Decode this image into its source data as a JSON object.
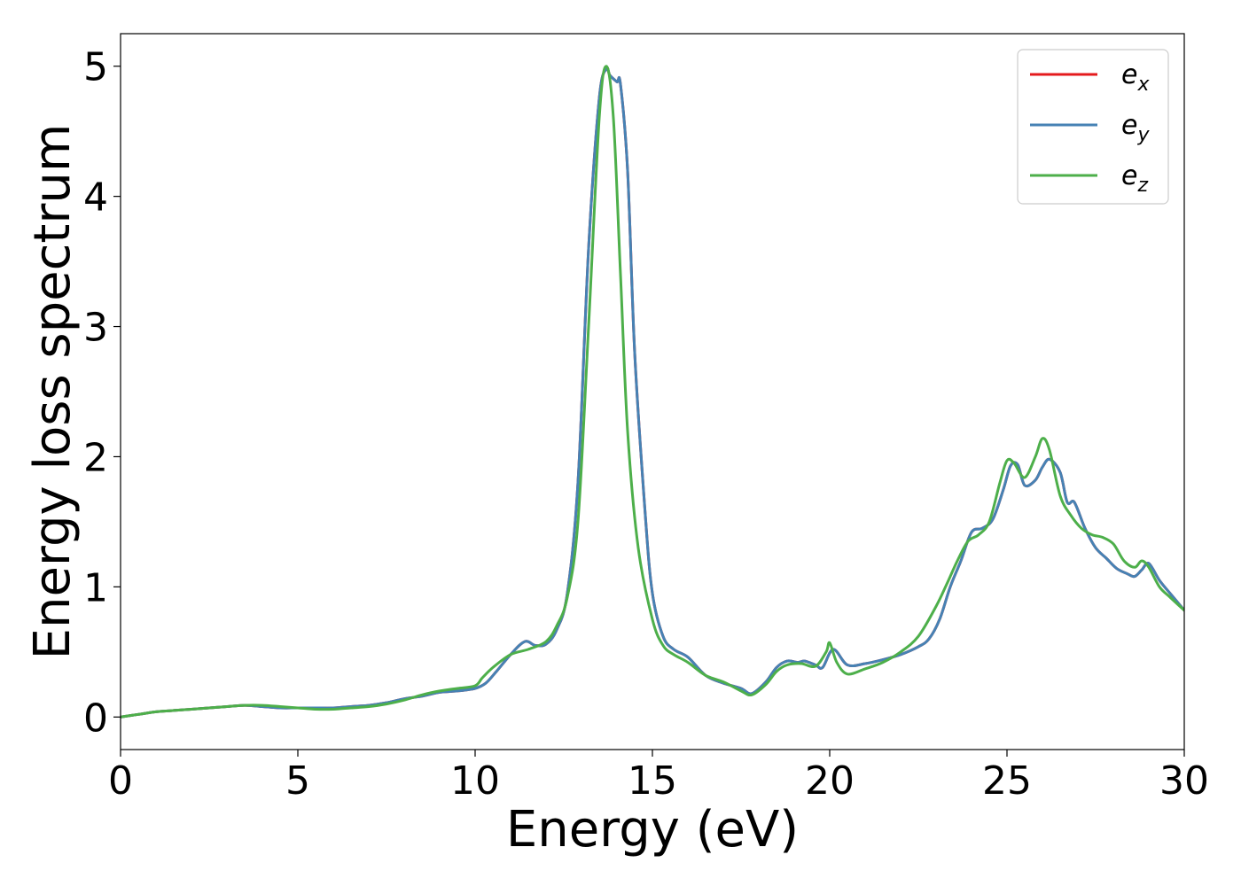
{
  "chart_data": {
    "type": "line",
    "xlabel": "Energy (eV)",
    "ylabel": "Energy loss spectrum",
    "xlim": [
      0,
      30
    ],
    "ylim": [
      -0.25,
      5.25
    ],
    "xticks": [
      0,
      5,
      10,
      15,
      20,
      25,
      30
    ],
    "yticks": [
      0,
      1,
      2,
      3,
      4,
      5
    ],
    "grid": false,
    "legend_position": "top-right",
    "series": [
      {
        "name": "e_x",
        "symbol": "e",
        "subscript": "x",
        "color": "#e41a1c",
        "x": [
          0,
          0.5,
          1,
          1.5,
          2,
          2.5,
          3,
          3.5,
          4,
          4.5,
          5,
          5.5,
          6,
          6.5,
          7,
          7.5,
          8,
          8.5,
          9,
          9.5,
          10,
          10.3,
          10.6,
          11,
          11.4,
          11.7,
          12,
          12.3,
          12.6,
          12.9,
          13.2,
          13.5,
          13.7,
          13.8,
          14,
          14.1,
          14.3,
          14.5,
          14.8,
          15,
          15.3,
          15.6,
          16,
          16.5,
          17,
          17.5,
          17.8,
          18.2,
          18.5,
          18.8,
          19.1,
          19.3,
          19.6,
          19.8,
          20.1,
          20.5,
          21,
          21.5,
          22,
          22.5,
          22.8,
          23.1,
          23.4,
          23.7,
          24,
          24.3,
          24.6,
          24.9,
          25.1,
          25.3,
          25.5,
          25.8,
          26,
          26.2,
          26.5,
          26.7,
          26.9,
          27.2,
          27.5,
          27.8,
          28.1,
          28.4,
          28.6,
          28.8,
          29,
          29.3,
          29.6,
          30
        ],
        "y": [
          0,
          0.02,
          0.04,
          0.05,
          0.06,
          0.07,
          0.08,
          0.09,
          0.08,
          0.07,
          0.07,
          0.07,
          0.07,
          0.08,
          0.09,
          0.11,
          0.14,
          0.16,
          0.19,
          0.2,
          0.22,
          0.26,
          0.35,
          0.48,
          0.58,
          0.55,
          0.56,
          0.67,
          0.95,
          1.8,
          3.6,
          4.75,
          4.98,
          4.93,
          4.88,
          4.86,
          4.2,
          2.8,
          1.55,
          0.95,
          0.62,
          0.52,
          0.46,
          0.32,
          0.26,
          0.22,
          0.18,
          0.27,
          0.38,
          0.43,
          0.42,
          0.43,
          0.4,
          0.38,
          0.52,
          0.4,
          0.41,
          0.44,
          0.48,
          0.54,
          0.6,
          0.75,
          1.0,
          1.2,
          1.42,
          1.45,
          1.52,
          1.75,
          1.93,
          1.94,
          1.78,
          1.82,
          1.92,
          1.98,
          1.88,
          1.65,
          1.65,
          1.45,
          1.3,
          1.22,
          1.14,
          1.1,
          1.08,
          1.13,
          1.18,
          1.05,
          0.95,
          0.82
        ]
      },
      {
        "name": "e_y",
        "symbol": "e",
        "subscript": "y",
        "color": "#4682b4",
        "x": [
          0,
          0.5,
          1,
          1.5,
          2,
          2.5,
          3,
          3.5,
          4,
          4.5,
          5,
          5.5,
          6,
          6.5,
          7,
          7.5,
          8,
          8.5,
          9,
          9.5,
          10,
          10.3,
          10.6,
          11,
          11.4,
          11.7,
          12,
          12.3,
          12.6,
          12.9,
          13.2,
          13.5,
          13.7,
          13.8,
          14,
          14.1,
          14.3,
          14.5,
          14.8,
          15,
          15.3,
          15.6,
          16,
          16.5,
          17,
          17.5,
          17.8,
          18.2,
          18.5,
          18.8,
          19.1,
          19.3,
          19.6,
          19.8,
          20.1,
          20.5,
          21,
          21.5,
          22,
          22.5,
          22.8,
          23.1,
          23.4,
          23.7,
          24,
          24.3,
          24.6,
          24.9,
          25.1,
          25.3,
          25.5,
          25.8,
          26,
          26.2,
          26.5,
          26.7,
          26.9,
          27.2,
          27.5,
          27.8,
          28.1,
          28.4,
          28.6,
          28.8,
          29,
          29.3,
          29.6,
          30
        ],
        "y": [
          0,
          0.02,
          0.04,
          0.05,
          0.06,
          0.07,
          0.08,
          0.09,
          0.08,
          0.07,
          0.07,
          0.07,
          0.07,
          0.08,
          0.09,
          0.11,
          0.14,
          0.16,
          0.19,
          0.2,
          0.22,
          0.26,
          0.35,
          0.48,
          0.58,
          0.55,
          0.56,
          0.67,
          0.95,
          1.8,
          3.6,
          4.75,
          4.98,
          4.93,
          4.88,
          4.86,
          4.2,
          2.8,
          1.55,
          0.95,
          0.62,
          0.52,
          0.46,
          0.32,
          0.26,
          0.22,
          0.18,
          0.27,
          0.38,
          0.43,
          0.42,
          0.43,
          0.4,
          0.38,
          0.52,
          0.4,
          0.41,
          0.44,
          0.48,
          0.54,
          0.6,
          0.75,
          1.0,
          1.2,
          1.42,
          1.45,
          1.52,
          1.75,
          1.93,
          1.94,
          1.78,
          1.82,
          1.92,
          1.98,
          1.88,
          1.65,
          1.65,
          1.45,
          1.3,
          1.22,
          1.14,
          1.1,
          1.08,
          1.13,
          1.18,
          1.05,
          0.95,
          0.82
        ]
      },
      {
        "name": "e_z",
        "symbol": "e",
        "subscript": "z",
        "color": "#4daf4a",
        "x": [
          0,
          0.5,
          1,
          1.5,
          2,
          2.5,
          3,
          3.5,
          4,
          4.5,
          5,
          5.5,
          6,
          6.5,
          7,
          7.5,
          8,
          8.5,
          9,
          9.5,
          10,
          10.2,
          10.5,
          11,
          11.5,
          12,
          12.3,
          12.6,
          12.9,
          13.2,
          13.5,
          13.7,
          13.9,
          14.1,
          14.3,
          14.6,
          15,
          15.3,
          15.6,
          16,
          16.5,
          17,
          17.5,
          17.8,
          18.2,
          18.5,
          18.8,
          19.2,
          19.6,
          19.9,
          20,
          20.2,
          20.5,
          21,
          21.5,
          22,
          22.5,
          23,
          23.3,
          23.6,
          23.9,
          24.2,
          24.5,
          24.8,
          25,
          25.2,
          25.5,
          25.8,
          26,
          26.2,
          26.5,
          26.8,
          27.1,
          27.4,
          27.7,
          28,
          28.3,
          28.6,
          28.8,
          29,
          29.3,
          29.6,
          30
        ],
        "y": [
          0,
          0.02,
          0.04,
          0.05,
          0.06,
          0.07,
          0.08,
          0.09,
          0.09,
          0.08,
          0.07,
          0.06,
          0.06,
          0.07,
          0.08,
          0.1,
          0.13,
          0.17,
          0.2,
          0.22,
          0.24,
          0.3,
          0.38,
          0.48,
          0.52,
          0.58,
          0.7,
          0.92,
          1.5,
          3.0,
          4.6,
          5.0,
          4.6,
          3.4,
          2.2,
          1.3,
          0.75,
          0.55,
          0.48,
          0.42,
          0.32,
          0.27,
          0.2,
          0.17,
          0.25,
          0.35,
          0.4,
          0.41,
          0.39,
          0.5,
          0.57,
          0.42,
          0.33,
          0.37,
          0.42,
          0.5,
          0.62,
          0.85,
          1.02,
          1.2,
          1.35,
          1.4,
          1.5,
          1.8,
          1.97,
          1.95,
          1.84,
          2.0,
          2.14,
          2.05,
          1.7,
          1.55,
          1.45,
          1.4,
          1.38,
          1.33,
          1.2,
          1.15,
          1.2,
          1.15,
          1.0,
          0.92,
          0.82
        ]
      }
    ]
  }
}
